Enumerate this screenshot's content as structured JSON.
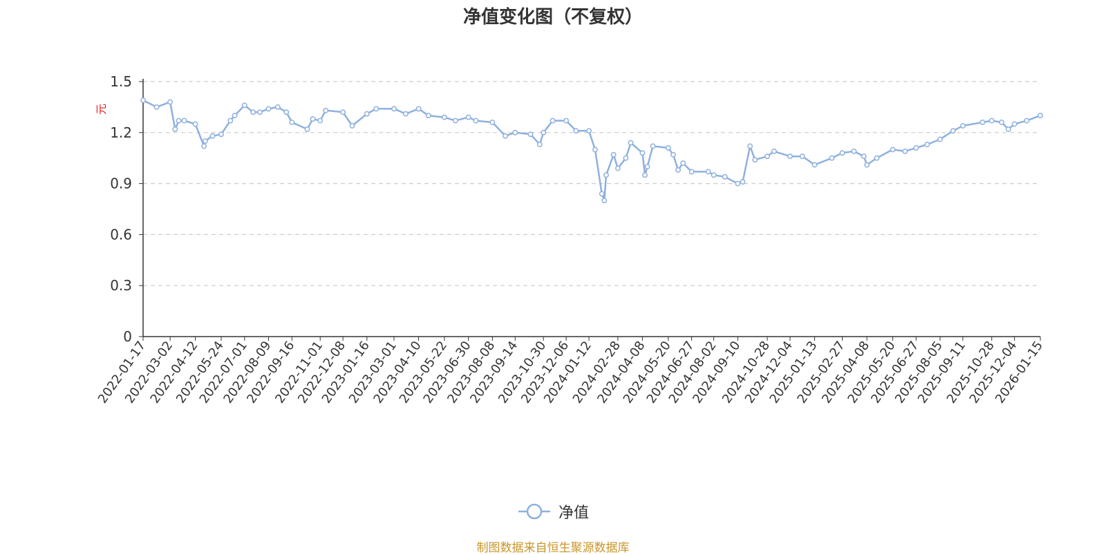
{
  "chart_data": {
    "type": "line",
    "title": "净值变化图（不复权）",
    "ylabel": "元",
    "ylim": [
      0,
      1.5
    ],
    "yticks": [
      "0",
      "0.3",
      "0.6",
      "0.9",
      "1.2",
      "1.5"
    ],
    "x_tick_labels": [
      "2022-01-17",
      "2022-03-02",
      "2022-04-12",
      "2022-05-24",
      "2022-07-01",
      "2022-08-09",
      "2022-09-16",
      "2022-11-01",
      "2022-12-08",
      "2023-01-16",
      "2023-03-01",
      "2023-04-10",
      "2023-05-22",
      "2023-06-30",
      "2023-08-08",
      "2023-09-14",
      "2023-10-30",
      "2023-12-06",
      "2024-01-12",
      "2024-02-28",
      "2024-04-08",
      "2024-05-20",
      "2024-06-27",
      "2024-08-02",
      "2024-09-10",
      "2024-10-28",
      "2024-12-04",
      "2025-01-13",
      "2025-02-27",
      "2025-04-08",
      "2025-05-20",
      "2025-06-27",
      "2025-08-05",
      "2025-09-11",
      "2025-10-28",
      "2025-12-04",
      "2026-01-15"
    ],
    "grid": true,
    "legend_position": "bottom-center",
    "series": [
      {
        "name": "净值",
        "x": [
          "2022-01-17",
          "2022-02-08",
          "2022-03-02",
          "2022-03-10",
          "2022-03-16",
          "2022-03-25",
          "2022-04-12",
          "2022-04-26",
          "2022-04-28",
          "2022-05-10",
          "2022-05-24",
          "2022-06-08",
          "2022-06-15",
          "2022-07-01",
          "2022-07-15",
          "2022-07-26",
          "2022-08-09",
          "2022-08-24",
          "2022-09-07",
          "2022-09-16",
          "2022-10-11",
          "2022-10-20",
          "2022-11-01",
          "2022-11-10",
          "2022-12-08",
          "2022-12-23",
          "2023-01-16",
          "2023-01-31",
          "2023-03-01",
          "2023-03-20",
          "2023-04-10",
          "2023-04-26",
          "2023-05-22",
          "2023-06-09",
          "2023-06-30",
          "2023-07-12",
          "2023-08-08",
          "2023-08-29",
          "2023-09-14",
          "2023-10-09",
          "2023-10-24",
          "2023-10-30",
          "2023-11-14",
          "2023-12-06",
          "2023-12-22",
          "2024-01-12",
          "2024-01-22",
          "2024-02-02",
          "2024-02-06",
          "2024-02-09",
          "2024-02-21",
          "2024-02-28",
          "2024-03-12",
          "2024-03-20",
          "2024-04-08",
          "2024-04-12",
          "2024-04-16",
          "2024-04-25",
          "2024-05-20",
          "2024-05-28",
          "2024-06-05",
          "2024-06-13",
          "2024-06-27",
          "2024-07-24",
          "2024-08-02",
          "2024-08-20",
          "2024-09-10",
          "2024-09-18",
          "2024-09-30",
          "2024-10-08",
          "2024-10-28",
          "2024-11-08",
          "2024-12-04",
          "2024-12-24",
          "2025-01-13",
          "2025-02-10",
          "2025-02-27",
          "2025-03-18",
          "2025-04-03",
          "2025-04-08",
          "2025-04-24",
          "2025-05-20",
          "2025-06-09",
          "2025-06-27",
          "2025-07-15",
          "2025-08-05",
          "2025-08-26",
          "2025-09-11",
          "2025-10-13",
          "2025-10-28",
          "2025-11-13",
          "2025-11-24",
          "2025-12-04",
          "2025-12-24",
          "2026-01-15"
        ],
        "values": [
          1.39,
          1.35,
          1.38,
          1.22,
          1.27,
          1.27,
          1.25,
          1.12,
          1.15,
          1.18,
          1.19,
          1.27,
          1.3,
          1.36,
          1.32,
          1.32,
          1.34,
          1.35,
          1.32,
          1.26,
          1.22,
          1.28,
          1.27,
          1.33,
          1.32,
          1.24,
          1.31,
          1.34,
          1.34,
          1.31,
          1.34,
          1.3,
          1.29,
          1.27,
          1.29,
          1.27,
          1.26,
          1.18,
          1.2,
          1.19,
          1.13,
          1.2,
          1.27,
          1.27,
          1.21,
          1.21,
          1.1,
          0.84,
          0.8,
          0.95,
          1.07,
          0.99,
          1.05,
          1.14,
          1.08,
          0.95,
          1.0,
          1.12,
          1.11,
          1.07,
          0.98,
          1.02,
          0.97,
          0.97,
          0.95,
          0.94,
          0.9,
          0.91,
          1.12,
          1.04,
          1.06,
          1.09,
          1.06,
          1.06,
          1.01,
          1.05,
          1.08,
          1.09,
          1.06,
          1.01,
          1.05,
          1.1,
          1.09,
          1.11,
          1.13,
          1.16,
          1.21,
          1.24,
          1.26,
          1.27,
          1.26,
          1.22,
          1.25,
          1.27,
          1.3
        ]
      }
    ]
  },
  "series_color": "#8EB0DE",
  "ylabel_color": "#E02020",
  "source_note": "制图数据来自恒生聚源数据库",
  "source_note_color": "#C8962A"
}
